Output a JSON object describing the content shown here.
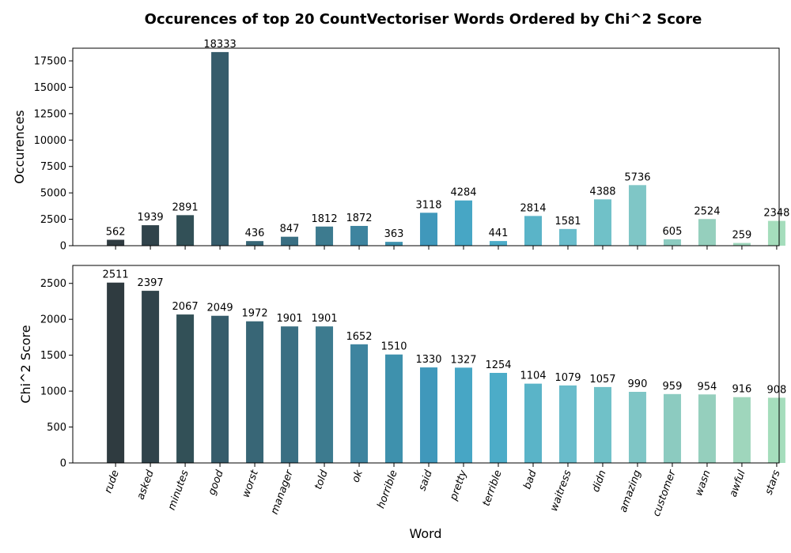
{
  "chart_data": {
    "type": "bar",
    "title": "Occurences of top 20 CountVectoriser Words Ordered by Chi^2 Score",
    "xlabel": "Word",
    "categories": [
      "rude",
      "asked",
      "minutes",
      "good",
      "worst",
      "manager",
      "told",
      "ok",
      "horrible",
      "said",
      "pretty",
      "terrible",
      "bad",
      "waitress",
      "didn",
      "amazing",
      "customer",
      "wasn",
      "awful",
      "stars"
    ],
    "colors": [
      "#2f3b40",
      "#30434b",
      "#325057",
      "#365c6b",
      "#386676",
      "#3a6f83",
      "#3d7b8f",
      "#3e849f",
      "#3e91ad",
      "#4098bb",
      "#47a6c5",
      "#4cacc8",
      "#5ab4c8",
      "#69bccb",
      "#70c1c8",
      "#7fc6c6",
      "#8ccbc0",
      "#95cfbd",
      "#9fd6bc",
      "#a5ddbc"
    ],
    "panels": [
      {
        "ylabel": "Occurences",
        "ylim": [
          0,
          18700
        ],
        "yticks": [
          0,
          2500,
          5000,
          7500,
          10000,
          12500,
          15000,
          17500
        ],
        "values": [
          562,
          1939,
          2891,
          18333,
          436,
          847,
          1812,
          1872,
          363,
          3118,
          4284,
          441,
          2814,
          1581,
          4388,
          5736,
          605,
          2524,
          259,
          2348
        ]
      },
      {
        "ylabel": "Chi^2 Score",
        "ylim": [
          0,
          2750
        ],
        "yticks": [
          0,
          500,
          1000,
          1500,
          2000,
          2500
        ],
        "values": [
          2511,
          2397,
          2067,
          2049,
          1972,
          1901,
          1901,
          1652,
          1510,
          1330,
          1327,
          1254,
          1104,
          1079,
          1057,
          990,
          959,
          954,
          916,
          908
        ]
      }
    ]
  }
}
